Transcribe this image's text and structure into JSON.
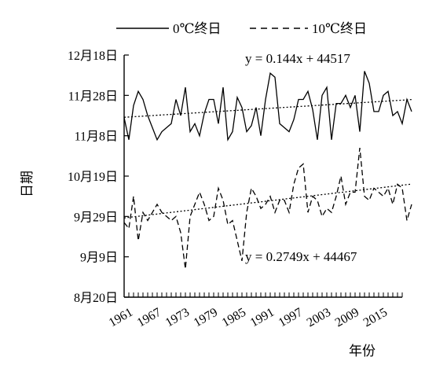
{
  "chart_data": {
    "type": "line",
    "xlabel": "年份",
    "ylabel": "日期",
    "x_tick_labels": [
      "1961",
      "1967",
      "1973",
      "1979",
      "1985",
      "1991",
      "1997",
      "2003",
      "2009",
      "2015"
    ],
    "x_tick_years": [
      1961,
      1967,
      1973,
      1979,
      1985,
      1991,
      1997,
      2003,
      2009,
      2015
    ],
    "xlim": [
      1961,
      2020
    ],
    "y_ticks": [
      {
        "label": "8月20日",
        "value": 44428
      },
      {
        "label": "9月9日",
        "value": 44448
      },
      {
        "label": "9月29日",
        "value": 44468
      },
      {
        "label": "10月19日",
        "value": 44488
      },
      {
        "label": "11月8日",
        "value": 44508
      },
      {
        "label": "11月28日",
        "value": 44528
      },
      {
        "label": "12月18日",
        "value": 44548
      }
    ],
    "ylim": [
      44428,
      44548
    ],
    "legend_position": "top",
    "series": [
      {
        "name": "0℃终日",
        "style": "solid",
        "start_year": 1961,
        "values": [
          44517,
          44506,
          44523,
          44530,
          44526,
          44518,
          44512,
          44506,
          44510,
          44512,
          44514,
          44526,
          44518,
          44532,
          44510,
          44514,
          44508,
          44519,
          44526,
          44526,
          44514,
          44532,
          44506,
          44510,
          44527,
          44522,
          44510,
          44513,
          44522,
          44508,
          44526,
          44539,
          44537,
          44514,
          44512,
          44510,
          44516,
          44526,
          44526,
          44530,
          44521,
          44506,
          44528,
          44532,
          44506,
          44524,
          44524,
          44528,
          44522,
          44528,
          44510,
          44540,
          44534,
          44520,
          44520,
          44528,
          44530,
          44518,
          44520,
          44514,
          44526,
          44520
        ],
        "trend": {
          "label": "y = 0.144x + 44517",
          "slope": 0.144,
          "intercept": 44517
        }
      },
      {
        "name": "10℃终日",
        "style": "dashed",
        "start_year": 1961,
        "values": [
          44465,
          44462,
          44478,
          44456,
          44470,
          44466,
          44470,
          44474,
          44470,
          44468,
          44466,
          44468,
          44460,
          44442,
          44468,
          44474,
          44480,
          44474,
          44466,
          44468,
          44482,
          44476,
          44464,
          44466,
          44456,
          44446,
          44470,
          44482,
          44478,
          44472,
          44474,
          44478,
          44470,
          44476,
          44476,
          44470,
          44484,
          44492,
          44494,
          44470,
          44478,
          44476,
          44468,
          44472,
          44470,
          44478,
          44488,
          44474,
          44480,
          44480,
          44502,
          44478,
          44476,
          44482,
          44480,
          44478,
          44482,
          44474,
          44484,
          44482,
          44466,
          44474
        ],
        "trend": {
          "label": "y = 0.2749x + 44467",
          "slope": 0.2749,
          "intercept": 44467
        }
      }
    ]
  }
}
